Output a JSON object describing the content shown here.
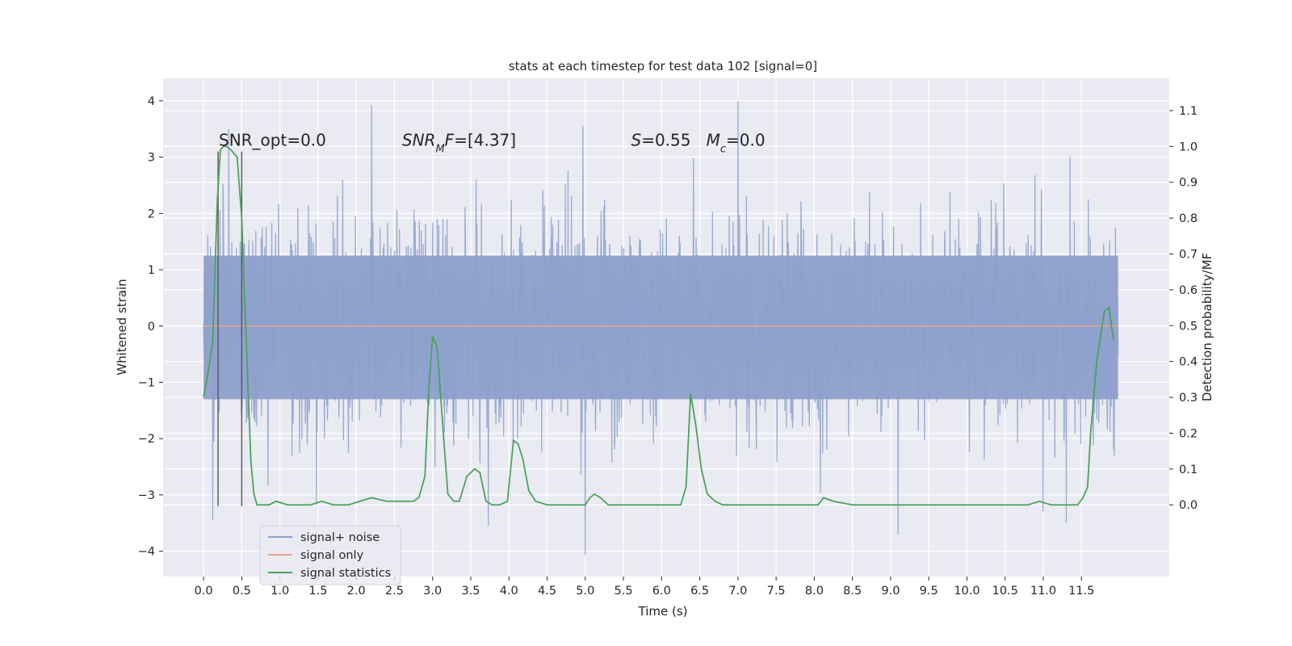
{
  "chart_data": {
    "type": "line",
    "title": "stats at each timestep for test data 102 [signal=0]",
    "xlabel": "Time (s)",
    "ylabel": "Whitened strain",
    "ylabel_right": "Detection probability/MF",
    "xlim": [
      -0.53,
      12.65
    ],
    "ylim": [
      -4.45,
      4.4
    ],
    "ylim_right": [
      -0.2,
      1.19
    ],
    "x_ticks": [
      0.0,
      0.5,
      1.0,
      1.5,
      2.0,
      2.5,
      3.0,
      3.5,
      4.0,
      4.5,
      5.0,
      5.5,
      6.0,
      6.5,
      7.0,
      7.5,
      8.0,
      8.5,
      9.0,
      9.5,
      10.0,
      10.5,
      11.0,
      11.5
    ],
    "x_tick_labels": [
      "0.0",
      "0.5",
      "1.0",
      "1.5",
      "2.0",
      "2.5",
      "3.0",
      "3.5",
      "4.0",
      "4.5",
      "5.0",
      "5.5",
      "6.0",
      "6.5",
      "7.0",
      "7.5",
      "8.0",
      "8.5",
      "9.0",
      "9.5",
      "10.0",
      "10.5",
      "11.0",
      "11.5"
    ],
    "y_ticks": [
      -4,
      -3,
      -2,
      -1,
      0,
      1,
      2,
      3,
      4
    ],
    "y_tick_labels": [
      "−4",
      "−3",
      "−2",
      "−1",
      "0",
      "1",
      "2",
      "3",
      "4"
    ],
    "y_ticks_right": [
      0.0,
      0.1,
      0.2,
      0.3,
      0.4,
      0.5,
      0.6,
      0.7,
      0.8,
      0.9,
      1.0,
      1.1
    ],
    "y_tick_labels_right": [
      "0.0",
      "0.1",
      "0.2",
      "0.3",
      "0.4",
      "0.5",
      "0.6",
      "0.7",
      "0.8",
      "0.9",
      "1.0",
      "1.1"
    ],
    "grid": true,
    "legend_position": "lower-left",
    "annotations": [
      {
        "text": "SNR_opt=0.0",
        "x": 0.2,
        "y": 3.2
      },
      {
        "text": "SNR_MF=[4.37]",
        "x": 2.6,
        "y": 3.2
      },
      {
        "text": "S=0.55   M_c=0.0",
        "x": 5.6,
        "y": 3.2
      }
    ],
    "vlines": [
      {
        "x": 0.19,
        "y_from": -3.2,
        "y_to": 3.1
      },
      {
        "x": 0.5,
        "y_from": -3.2,
        "y_to": 3.1
      }
    ],
    "series": [
      {
        "name": "signal+ noise",
        "axis": "left",
        "style": "noise-band",
        "color": "#8da0cb",
        "x_range": [
          0.0,
          11.98
        ],
        "band_core": [
          -1.3,
          1.25
        ],
        "spike_range": [
          -4.1,
          4.0
        ],
        "notable_peaks": [
          {
            "x": 7.0,
            "y": 4.0
          },
          {
            "x": 2.2,
            "y": 3.92
          },
          {
            "x": 4.97,
            "y": 3.55
          },
          {
            "x": 11.3,
            "y": 3.5
          },
          {
            "x": 0.33,
            "y": 3.5
          },
          {
            "x": 5.0,
            "y": -4.07
          },
          {
            "x": 9.1,
            "y": -3.7
          },
          {
            "x": 3.73,
            "y": -3.55
          },
          {
            "x": 0.12,
            "y": -3.45
          },
          {
            "x": 11.3,
            "y": -3.5
          }
        ]
      },
      {
        "name": "signal only",
        "axis": "left",
        "color": "#e8a58c",
        "x": [
          0.0,
          11.98
        ],
        "y": [
          0.0,
          0.0
        ]
      },
      {
        "name": "signal statistics",
        "axis": "right",
        "color": "#4ca25c",
        "x": [
          0.0,
          0.06,
          0.12,
          0.18,
          0.22,
          0.26,
          0.3,
          0.36,
          0.44,
          0.5,
          0.56,
          0.62,
          0.66,
          0.7,
          0.76,
          0.86,
          0.95,
          1.1,
          1.25,
          1.4,
          1.55,
          1.7,
          1.9,
          2.05,
          2.2,
          2.4,
          2.55,
          2.65,
          2.75,
          2.82,
          2.9,
          2.95,
          3.0,
          3.06,
          3.12,
          3.2,
          3.28,
          3.35,
          3.45,
          3.55,
          3.62,
          3.7,
          3.78,
          3.88,
          3.98,
          4.06,
          4.12,
          4.18,
          4.26,
          4.35,
          4.5,
          4.7,
          4.9,
          5.0,
          5.06,
          5.12,
          5.2,
          5.3,
          5.5,
          5.8,
          6.1,
          6.25,
          6.32,
          6.38,
          6.45,
          6.52,
          6.6,
          6.7,
          6.8,
          7.0,
          7.4,
          7.7,
          7.9,
          8.05,
          8.12,
          8.25,
          8.5,
          8.8,
          9.0,
          9.5,
          10.0,
          10.5,
          10.8,
          10.95,
          11.1,
          11.3,
          11.45,
          11.52,
          11.58,
          11.62,
          11.7,
          11.8,
          11.86,
          11.92
        ],
        "y": [
          0.3,
          0.37,
          0.46,
          0.85,
          0.99,
          1.0,
          1.0,
          0.99,
          0.97,
          0.8,
          0.45,
          0.12,
          0.03,
          0.0,
          0.0,
          0.0,
          0.01,
          0.0,
          0.0,
          0.0,
          0.01,
          0.0,
          0.0,
          0.01,
          0.02,
          0.01,
          0.01,
          0.01,
          0.01,
          0.02,
          0.08,
          0.32,
          0.47,
          0.44,
          0.26,
          0.03,
          0.01,
          0.01,
          0.08,
          0.1,
          0.09,
          0.01,
          0.0,
          0.0,
          0.01,
          0.18,
          0.17,
          0.13,
          0.04,
          0.01,
          0.0,
          0.0,
          0.0,
          0.0,
          0.02,
          0.03,
          0.02,
          0.0,
          0.0,
          0.0,
          0.0,
          0.0,
          0.05,
          0.31,
          0.22,
          0.1,
          0.03,
          0.01,
          0.0,
          0.0,
          0.0,
          0.0,
          0.0,
          0.0,
          0.02,
          0.01,
          0.0,
          0.0,
          0.0,
          0.0,
          0.0,
          0.0,
          0.0,
          0.01,
          0.0,
          0.0,
          0.0,
          0.02,
          0.05,
          0.2,
          0.4,
          0.54,
          0.55,
          0.46
        ]
      }
    ]
  }
}
